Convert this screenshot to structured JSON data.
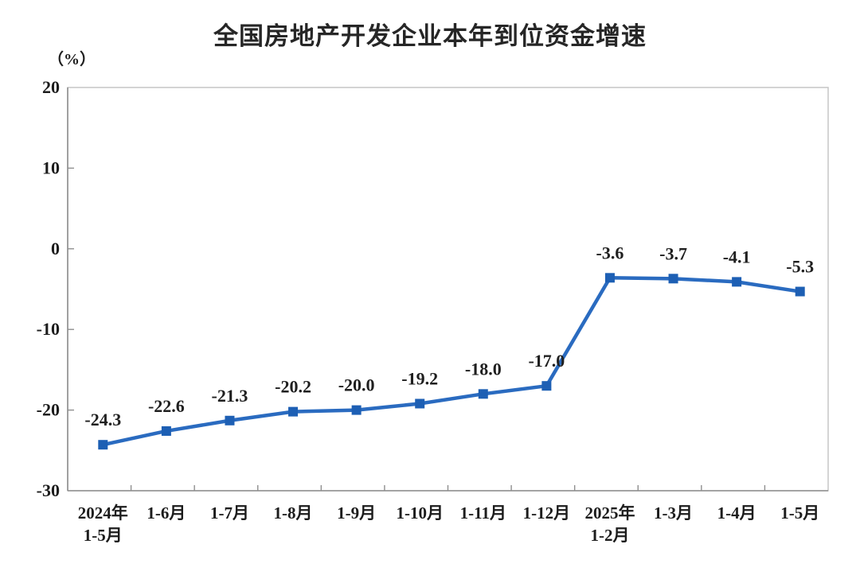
{
  "chart_data": {
    "type": "line",
    "title": "全国房地产开发企业本年到位资金增速",
    "unit_label": "（%）",
    "categories": [
      [
        "2024年",
        "1-5月"
      ],
      [
        "1-6月"
      ],
      [
        "1-7月"
      ],
      [
        "1-8月"
      ],
      [
        "1-9月"
      ],
      [
        "1-10月"
      ],
      [
        "1-11月"
      ],
      [
        "1-12月"
      ],
      [
        "2025年",
        "1-2月"
      ],
      [
        "1-3月"
      ],
      [
        "1-4月"
      ],
      [
        "1-5月"
      ]
    ],
    "values": [
      -24.3,
      -22.6,
      -21.3,
      -20.2,
      -20.0,
      -19.2,
      -18.0,
      -17.0,
      -3.6,
      -3.7,
      -4.1,
      -5.3
    ],
    "data_labels": [
      "-24.3",
      "-22.6",
      "-21.3",
      "-20.2",
      "-20.0",
      "-19.2",
      "-18.0",
      "-17.0",
      "-3.6",
      "-3.7",
      "-4.1",
      "-5.3"
    ],
    "y_ticks": [
      20,
      10,
      0,
      -10,
      -20,
      -30
    ],
    "ylim": [
      -30,
      20
    ],
    "xlabel": "",
    "ylabel": "（%）",
    "grid": false,
    "legend": false,
    "colors": {
      "line": "#2a6bc0",
      "marker": "#1d5fb4",
      "axis": "#8f8f8f",
      "plot_border": "#c6c6c6",
      "title_text": "#262626",
      "tick_text": "#1c1c1c",
      "data_label_text": "#1f1f1f",
      "background": "#ffffff"
    }
  }
}
